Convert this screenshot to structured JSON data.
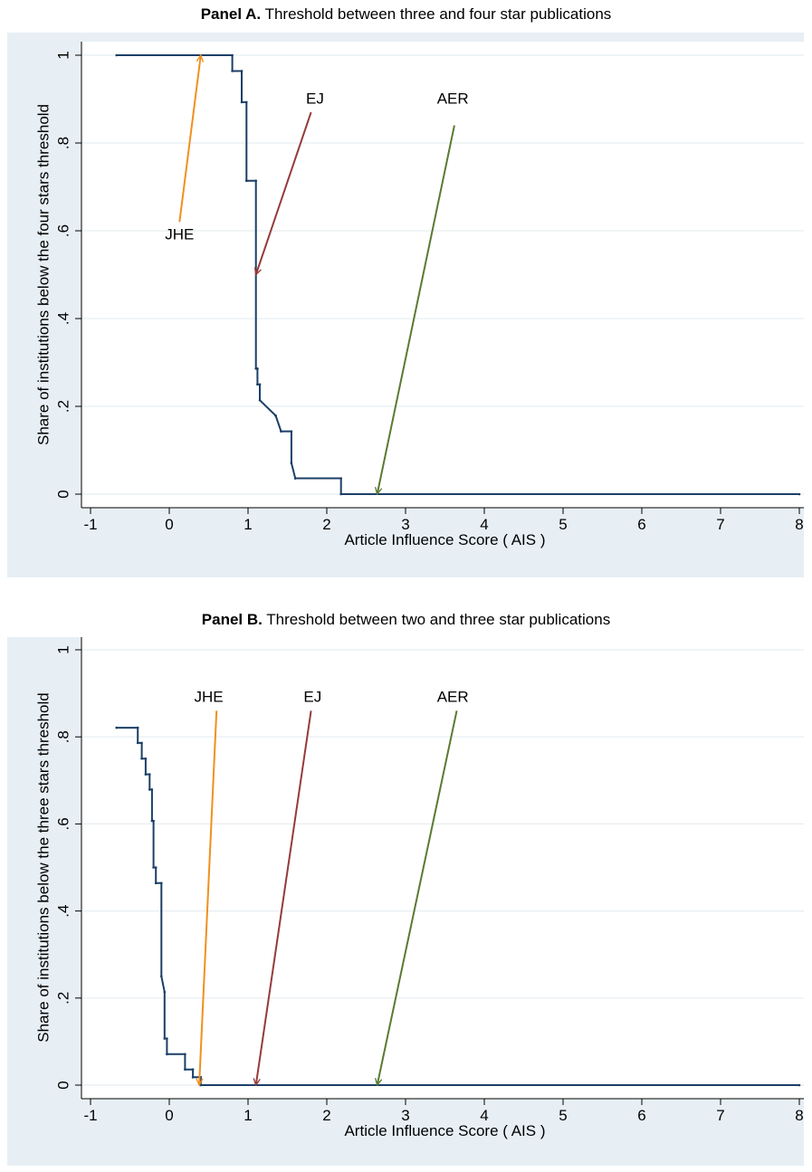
{
  "colors": {
    "background": "#e7eff5",
    "plot_background": "#ffffff",
    "grid": "#e8eef2",
    "step_line": "#1b3f66",
    "jhe_arrow": "#f0901e",
    "ej_arrow": "#963a3a",
    "aer_arrow": "#5a7a32"
  },
  "chart_data": [
    {
      "type": "line",
      "title_bold": "Panel A.",
      "title": "Threshold between three and four star publications",
      "xlabel": "Article Influence Score ( AIS )",
      "ylabel": "Share of institutions below the four stars threshold",
      "xlim": [
        -1,
        8
      ],
      "ylim": [
        0,
        1
      ],
      "xticks": [
        "-1",
        "0",
        "1",
        "2",
        "3",
        "4",
        "5",
        "6",
        "7",
        "8"
      ],
      "yticks": [
        "0",
        ".2",
        ".4",
        ".6",
        ".8",
        "1"
      ],
      "grid": true,
      "series": [
        {
          "x": [
            -0.67,
            0.8,
            0.8,
            0.92,
            0.92,
            0.98,
            0.98,
            1.1,
            1.1,
            1.12,
            1.12,
            1.15,
            1.15,
            1.35,
            1.35,
            1.42,
            1.42,
            1.55,
            1.55,
            1.6,
            1.6,
            2.18,
            2.18,
            8.0
          ],
          "y": [
            1,
            1,
            0.964,
            0.964,
            0.893,
            0.893,
            0.714,
            0.714,
            0.286,
            0.286,
            0.25,
            0.25,
            0.214,
            0.179,
            0.179,
            0.143,
            0.143,
            0.143,
            0.071,
            0.036,
            0.036,
            0.036,
            0,
            0
          ]
        }
      ],
      "annotations": [
        {
          "label": "JHE",
          "label_x": 0.13,
          "label_y": 0.58,
          "from_x": 0.13,
          "from_y": 0.62,
          "to_x": 0.4,
          "to_y": 1.0,
          "color_key": "jhe_arrow"
        },
        {
          "label": "EJ",
          "label_x": 1.85,
          "label_y": 0.89,
          "from_x": 1.8,
          "from_y": 0.87,
          "to_x": 1.1,
          "to_y": 0.5,
          "color_key": "ej_arrow"
        },
        {
          "label": "AER",
          "label_x": 3.6,
          "label_y": 0.89,
          "from_x": 3.62,
          "from_y": 0.84,
          "to_x": 2.64,
          "to_y": 0.0,
          "color_key": "aer_arrow"
        }
      ]
    },
    {
      "type": "line",
      "title_bold": "Panel B.",
      "title": "Threshold between two and three star publications",
      "xlabel": "Article Influence Score ( AIS )",
      "ylabel": "Share of institutions below the three stars threshold",
      "xlim": [
        -1,
        8
      ],
      "ylim": [
        0,
        1
      ],
      "xticks": [
        "-1",
        "0",
        "1",
        "2",
        "3",
        "4",
        "5",
        "6",
        "7",
        "8"
      ],
      "yticks": [
        "0",
        ".2",
        ".4",
        ".6",
        ".8",
        "1"
      ],
      "grid": true,
      "series": [
        {
          "x": [
            -0.67,
            -0.4,
            -0.4,
            -0.35,
            -0.35,
            -0.3,
            -0.3,
            -0.25,
            -0.25,
            -0.22,
            -0.22,
            -0.2,
            -0.2,
            -0.17,
            -0.17,
            -0.1,
            -0.1,
            -0.06,
            -0.06,
            -0.03,
            -0.03,
            0.2,
            0.2,
            0.3,
            0.3,
            0.4,
            0.4,
            8.0
          ],
          "y": [
            0.821,
            0.821,
            0.786,
            0.786,
            0.75,
            0.75,
            0.714,
            0.714,
            0.679,
            0.679,
            0.607,
            0.607,
            0.5,
            0.5,
            0.464,
            0.464,
            0.25,
            0.214,
            0.107,
            0.107,
            0.071,
            0.071,
            0.036,
            0.036,
            0.018,
            0.018,
            0,
            0
          ]
        }
      ],
      "annotations": [
        {
          "label": "JHE",
          "label_x": 0.5,
          "label_y": 0.88,
          "from_x": 0.6,
          "from_y": 0.86,
          "to_x": 0.38,
          "to_y": 0.0,
          "color_key": "jhe_arrow"
        },
        {
          "label": "EJ",
          "label_x": 1.82,
          "label_y": 0.88,
          "from_x": 1.8,
          "from_y": 0.86,
          "to_x": 1.1,
          "to_y": 0.0,
          "color_key": "ej_arrow"
        },
        {
          "label": "AER",
          "label_x": 3.6,
          "label_y": 0.88,
          "from_x": 3.65,
          "from_y": 0.86,
          "to_x": 2.64,
          "to_y": 0.0,
          "color_key": "aer_arrow"
        }
      ]
    }
  ]
}
